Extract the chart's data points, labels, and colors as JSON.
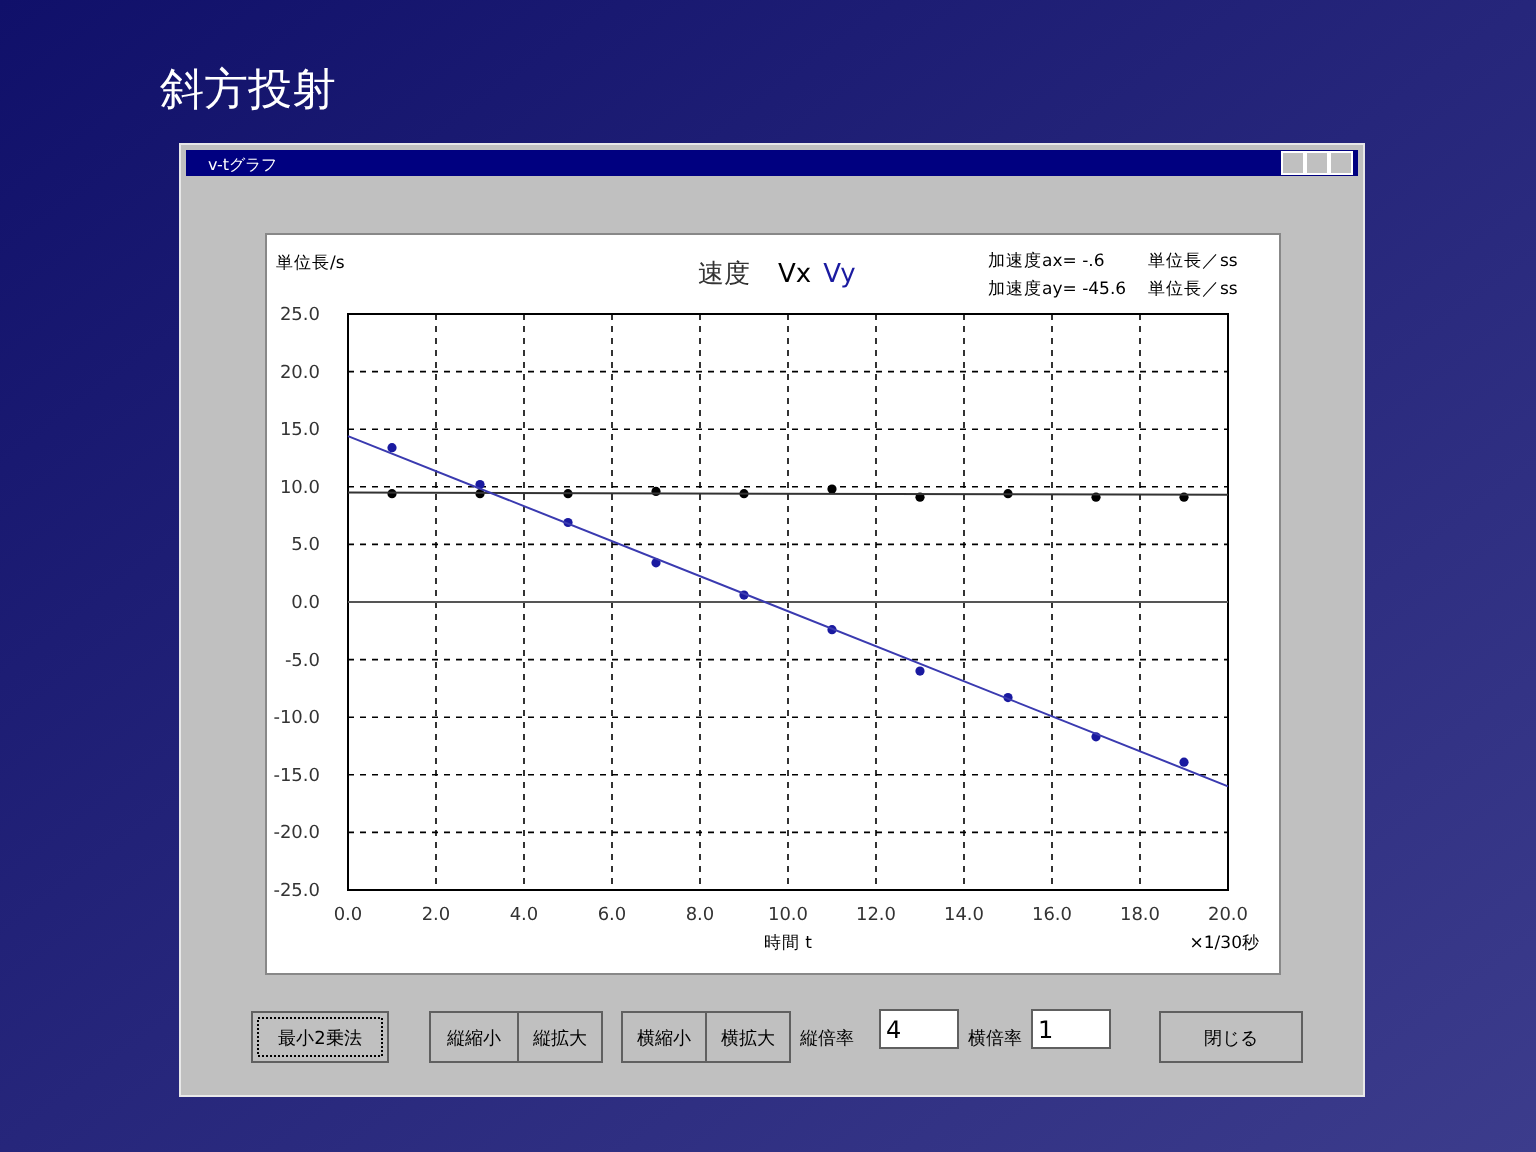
{
  "chart_data": {
    "type": "scatter",
    "title": "斜方投射",
    "subtitle": "速度",
    "xlabel": "時間 t",
    "ylabel": "単位長/s",
    "xlim": [
      0,
      20
    ],
    "ylim": [
      -25,
      25
    ],
    "xticks": [
      {
        "value": 0,
        "label": "0.0"
      },
      {
        "value": 2,
        "label": "2.0"
      },
      {
        "value": 4,
        "label": "4.0"
      },
      {
        "value": 6,
        "label": "6.0"
      },
      {
        "value": 8,
        "label": "8.0"
      },
      {
        "value": 10,
        "label": "10.0"
      },
      {
        "value": 12,
        "label": "12.0"
      },
      {
        "value": 14,
        "label": "14.0"
      },
      {
        "value": 16,
        "label": "16.0"
      },
      {
        "value": 18,
        "label": "18.0"
      },
      {
        "value": 20,
        "label": "20.0"
      }
    ],
    "yticks": [
      {
        "value": 25,
        "label": "25.0"
      },
      {
        "value": 20,
        "label": "20.0"
      },
      {
        "value": 15,
        "label": "15.0"
      },
      {
        "value": 10,
        "label": "10.0"
      },
      {
        "value": 5,
        "label": "5.0"
      },
      {
        "value": 0,
        "label": "0.0"
      },
      {
        "value": -5,
        "label": "-5.0"
      },
      {
        "value": -10,
        "label": "-10.0"
      },
      {
        "value": -15,
        "label": "-15.0"
      },
      {
        "value": -20,
        "label": "-20.0"
      },
      {
        "value": -25,
        "label": "-25.0"
      }
    ],
    "grid": true,
    "series": [
      {
        "name": "Vx",
        "color": "#000000",
        "x": [
          1,
          3,
          5,
          7,
          9,
          11,
          13,
          15,
          17,
          19
        ],
        "values": [
          9.4,
          9.4,
          9.4,
          9.6,
          9.4,
          9.8,
          9.1,
          9.4,
          9.1,
          9.1
        ],
        "marker": "circle"
      },
      {
        "name": "Vy",
        "color": "#1a1aa0",
        "x": [
          1,
          3,
          5,
          7,
          9,
          11,
          13,
          15,
          17,
          19
        ],
        "values": [
          13.4,
          10.2,
          6.9,
          3.4,
          0.6,
          -2.4,
          -6.0,
          -8.3,
          -11.7,
          -13.9
        ],
        "marker": "circle"
      },
      {
        "type": "line",
        "color": "#333333",
        "x": [
          0,
          20
        ],
        "values": [
          9.5,
          9.3
        ],
        "marker": "none"
      },
      {
        "type": "line",
        "color": "#3a3ab0",
        "x": [
          0,
          20
        ],
        "values": [
          14.4,
          -16.0
        ],
        "marker": "none"
      }
    ],
    "ref_lines": [
      {
        "axis": "y",
        "value": 0,
        "color": "#555555"
      }
    ],
    "annotations": [
      "v-tグラフ",
      "加速度ax= -.6",
      "単位長／ss",
      "加速度ay= -45.6",
      "単位長／ss",
      "×1/30秒",
      "最小2乗法",
      "縦縮小",
      "縦拡大",
      "横縮小",
      "横拡大",
      "縦倍率",
      "4",
      "横倍率",
      "1",
      "閉じる"
    ]
  }
}
